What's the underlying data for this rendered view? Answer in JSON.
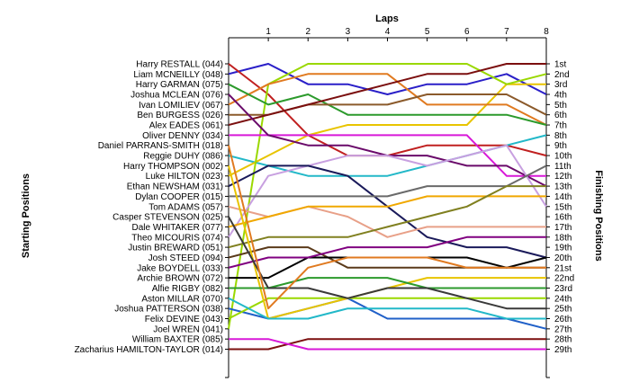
{
  "chart_data": {
    "type": "line",
    "title": "",
    "xlabel": "Laps",
    "ylabel_left": "Starting Positions",
    "ylabel_right": "Finishing Positions",
    "x": [
      0,
      1,
      2,
      3,
      4,
      5,
      6,
      7,
      8
    ],
    "x_tick_labels": [
      "1",
      "2",
      "3",
      "4",
      "5",
      "6",
      "7",
      "8"
    ],
    "y_axis_reversed": true,
    "ylim": [
      1,
      29
    ],
    "drivers": [
      "Harry RESTALL (044)",
      "Liam MCNEILLY (048)",
      "Harry GARMAN (075)",
      "Joshua MCLEAN (076)",
      "Ivan LOMILIEV (067)",
      "Ben BURGESS (026)",
      "Alex EADES (061)",
      "Oliver DENNY (034)",
      "Daniel PARRANS-SMITH (018)",
      "Reggie DUHY (086)",
      "Harry THOMPSON (002)",
      "Luke HILTON (023)",
      "Ethan NEWSHAM (031)",
      "Dylan COOPER (015)",
      "Tom ADAMS (057)",
      "Casper STEVENSON (025)",
      "Dale WHITAKER (077)",
      "Theo MICOURIS (074)",
      "Justin BREWARD (051)",
      "Josh STEED (094)",
      "Jake BOYDELL (033)",
      "Archie BROWN (072)",
      "Alfie RIGBY (082)",
      "Aston MILLAR (070)",
      "Joshua PATTERSON (038)",
      "Felix DEVINE (043)",
      "Joel WREN (041)",
      "William BAXTER (085)",
      "Zacharius HAMILTON-TAYLOR (014)"
    ],
    "finishing_labels": [
      "1st",
      "2nd",
      "3rd",
      "4th",
      "5th",
      "6th",
      "7th",
      "8th",
      "9th",
      "10th",
      "11th",
      "12th",
      "13th",
      "14th",
      "15th",
      "16th",
      "17th",
      "18th",
      "19th",
      "20th",
      "21st",
      "22nd",
      "23rd",
      "24th",
      "25th",
      "26th",
      "27th",
      "28th",
      "29th"
    ],
    "series": [
      {
        "color": "#2a1fc8",
        "values": [
          2,
          1,
          3,
          3,
          4,
          3,
          3,
          2,
          4
        ]
      },
      {
        "color": "#c02020",
        "values": [
          1,
          4,
          8,
          10,
          10,
          9,
          9,
          9,
          10
        ]
      },
      {
        "color": "#22b8c8",
        "values": [
          10,
          11,
          12,
          12,
          12,
          11,
          10,
          9,
          8
        ]
      },
      {
        "color": "#e8c400",
        "values": [
          12,
          10,
          8,
          7,
          7,
          7,
          7,
          3,
          3
        ]
      },
      {
        "color": "#9ad800",
        "values": [
          27,
          3,
          1,
          1,
          1,
          1,
          1,
          3,
          2
        ]
      },
      {
        "color": "#e07a20",
        "values": [
          5,
          3,
          2,
          2,
          2,
          5,
          5,
          5,
          7
        ]
      },
      {
        "color": "#2c9a2c",
        "values": [
          3,
          5,
          4,
          6,
          6,
          6,
          6,
          6,
          7
        ]
      },
      {
        "color": "#8b5a2b",
        "values": [
          6,
          6,
          5,
          5,
          5,
          4,
          4,
          4,
          6
        ]
      },
      {
        "color": "#7b0f0f",
        "values": [
          7,
          6,
          5,
          4,
          3,
          2,
          2,
          1,
          1
        ]
      },
      {
        "color": "#d818d8",
        "values": [
          8,
          8,
          8,
          8,
          8,
          8,
          8,
          12,
          12
        ]
      },
      {
        "color": "#6a0a6a",
        "values": [
          4,
          8,
          9,
          9,
          10,
          10,
          11,
          11,
          13
        ]
      },
      {
        "color": "#c8a0e0",
        "values": [
          18,
          12,
          11,
          10,
          10,
          11,
          10,
          9,
          15
        ]
      },
      {
        "color": "#1a1a5a",
        "values": [
          13,
          11,
          11,
          12,
          15,
          18,
          19,
          19,
          20
        ]
      },
      {
        "color": "#e8a088",
        "values": [
          15,
          16,
          15,
          16,
          18,
          17,
          17,
          17,
          17
        ]
      },
      {
        "color": "#f0a800",
        "values": [
          17,
          16,
          15,
          15,
          15,
          14,
          14,
          14,
          14
        ]
      },
      {
        "color": "#6a6a6a",
        "values": [
          14,
          14,
          14,
          14,
          14,
          13,
          13,
          13,
          11
        ]
      },
      {
        "color": "#2060c8",
        "values": [
          25,
          26,
          25,
          24,
          26,
          26,
          26,
          26,
          27
        ]
      },
      {
        "color": "#808020",
        "values": [
          19,
          18,
          18,
          18,
          17,
          16,
          15,
          13,
          13
        ]
      },
      {
        "color": "#5a3a1a",
        "values": [
          20,
          19,
          19,
          21,
          21,
          21,
          21,
          21,
          21
        ]
      },
      {
        "color": "#000000",
        "values": [
          22,
          22,
          20,
          20,
          20,
          20,
          20,
          21,
          20
        ]
      },
      {
        "color": "#9ad800",
        "values": [
          26,
          24,
          24,
          24,
          24,
          24,
          24,
          24,
          24
        ]
      },
      {
        "color": "#800080",
        "values": [
          21,
          20,
          20,
          19,
          19,
          19,
          18,
          18,
          18
        ]
      },
      {
        "color": "#e8c400",
        "values": [
          11,
          26,
          25,
          24,
          23,
          22,
          22,
          22,
          22
        ]
      },
      {
        "color": "#2c9a2c",
        "values": [
          23,
          23,
          22,
          22,
          22,
          23,
          23,
          23,
          23
        ]
      },
      {
        "color": "#3a3a3a",
        "values": [
          16,
          23,
          23,
          24,
          23,
          23,
          24,
          25,
          25
        ]
      },
      {
        "color": "#22b8c8",
        "values": [
          24,
          26,
          26,
          25,
          25,
          25,
          25,
          26,
          26
        ]
      },
      {
        "color": "#e07a20",
        "values": [
          9,
          25,
          21,
          20,
          20,
          20,
          21,
          21,
          21
        ]
      },
      {
        "color": "#7b0f0f",
        "values": [
          29,
          29,
          28,
          28,
          28,
          28,
          28,
          28,
          28
        ]
      },
      {
        "color": "#d818d8",
        "values": [
          28,
          28,
          29,
          29,
          29,
          29,
          29,
          29,
          29
        ]
      }
    ]
  }
}
